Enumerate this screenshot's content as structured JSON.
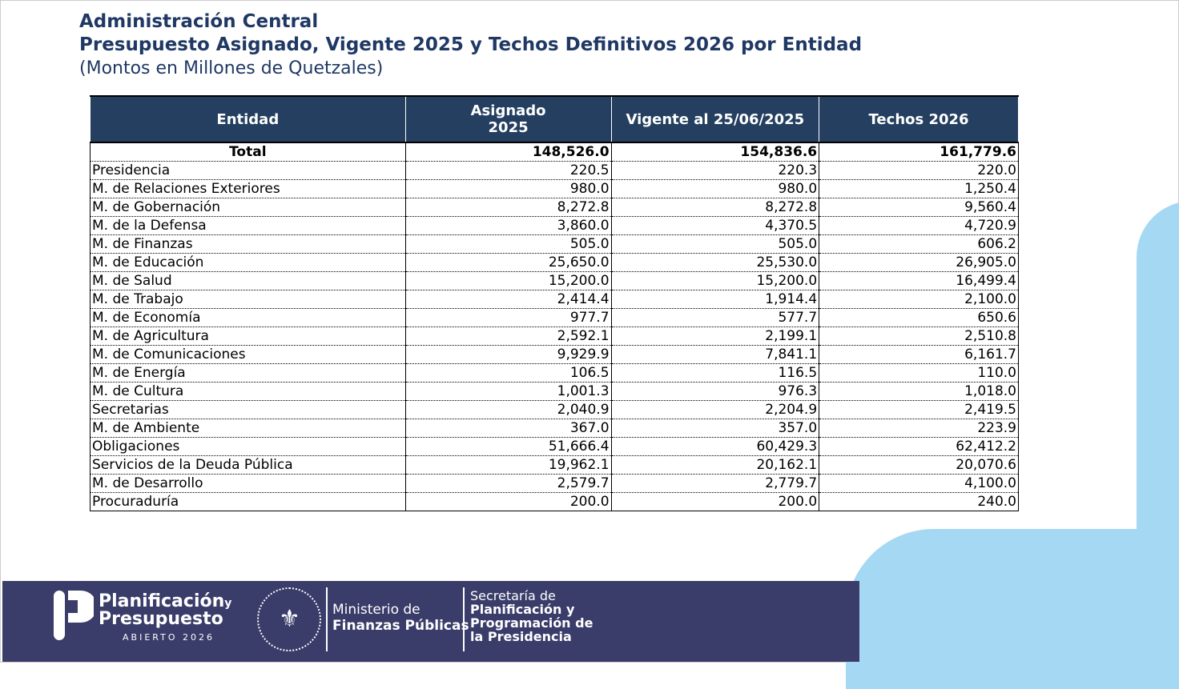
{
  "header": {
    "line1": "Administración Central",
    "line2": "Presupuesto Asignado, Vigente 2025 y Techos Definitivos 2026 por Entidad",
    "subtitle": "(Montos en Millones de Quetzales)"
  },
  "table": {
    "columns": [
      "Entidad",
      "Asignado 2025",
      "Vigente al 25/06/2025",
      "Techos 2026"
    ],
    "total": {
      "label": "Total",
      "values": [
        "148,526.0",
        "154,836.6",
        "161,779.6"
      ]
    },
    "rows": [
      [
        "Presidencia",
        "220.5",
        "220.3",
        "220.0"
      ],
      [
        "M. de Relaciones Exteriores",
        "980.0",
        "980.0",
        "1,250.4"
      ],
      [
        "M. de Gobernación",
        "8,272.8",
        "8,272.8",
        "9,560.4"
      ],
      [
        "M. de la Defensa",
        "3,860.0",
        "4,370.5",
        "4,720.9"
      ],
      [
        "M. de Finanzas",
        "505.0",
        "505.0",
        "606.2"
      ],
      [
        "M. de Educación",
        "25,650.0",
        "25,530.0",
        "26,905.0"
      ],
      [
        "M. de Salud",
        "15,200.0",
        "15,200.0",
        "16,499.4"
      ],
      [
        "M. de Trabajo",
        "2,414.4",
        "1,914.4",
        "2,100.0"
      ],
      [
        "M. de Economía",
        "977.7",
        "577.7",
        "650.6"
      ],
      [
        "M. de Agricultura",
        "2,592.1",
        "2,199.1",
        "2,510.8"
      ],
      [
        "M. de Comunicaciones",
        "9,929.9",
        "7,841.1",
        "6,161.7"
      ],
      [
        "M. de Energía",
        "106.5",
        "116.5",
        "110.0"
      ],
      [
        "M. de Cultura",
        "1,001.3",
        "976.3",
        "1,018.0"
      ],
      [
        "Secretarias",
        "2,040.9",
        "2,204.9",
        "2,419.5"
      ],
      [
        "M. de Ambiente",
        "367.0",
        "357.0",
        "223.9"
      ],
      [
        "Obligaciones",
        "51,666.4",
        "60,429.3",
        "62,412.2"
      ],
      [
        "Servicios de la Deuda Pública",
        "19,962.1",
        "20,162.1",
        "20,070.6"
      ],
      [
        "M. de Desarrollo",
        "2,579.7",
        "2,779.7",
        "4,100.0"
      ],
      [
        "Procuraduría",
        "200.0",
        "200.0",
        "240.0"
      ]
    ]
  },
  "footer": {
    "pp_line1": "Planificación",
    "pp_y": "y",
    "pp_line2": "Presupuesto",
    "pp_sub": "ABIERTO 2026",
    "seal_text": "GOBIERNO DE LA REPÚBLICA · GUATEMALA",
    "mfp_line1": "Ministerio de",
    "mfp_line2": "Finanzas Públicas",
    "segeplan_line1": "Secretaría de",
    "segeplan_line2": "Planificación y",
    "segeplan_line3": "Programación de",
    "segeplan_line4": "la Presidencia"
  },
  "colors": {
    "header_bg": "#243f60",
    "title": "#1f3864",
    "footer_bg": "#3a3c6a",
    "accent": "#a5d8f2"
  }
}
